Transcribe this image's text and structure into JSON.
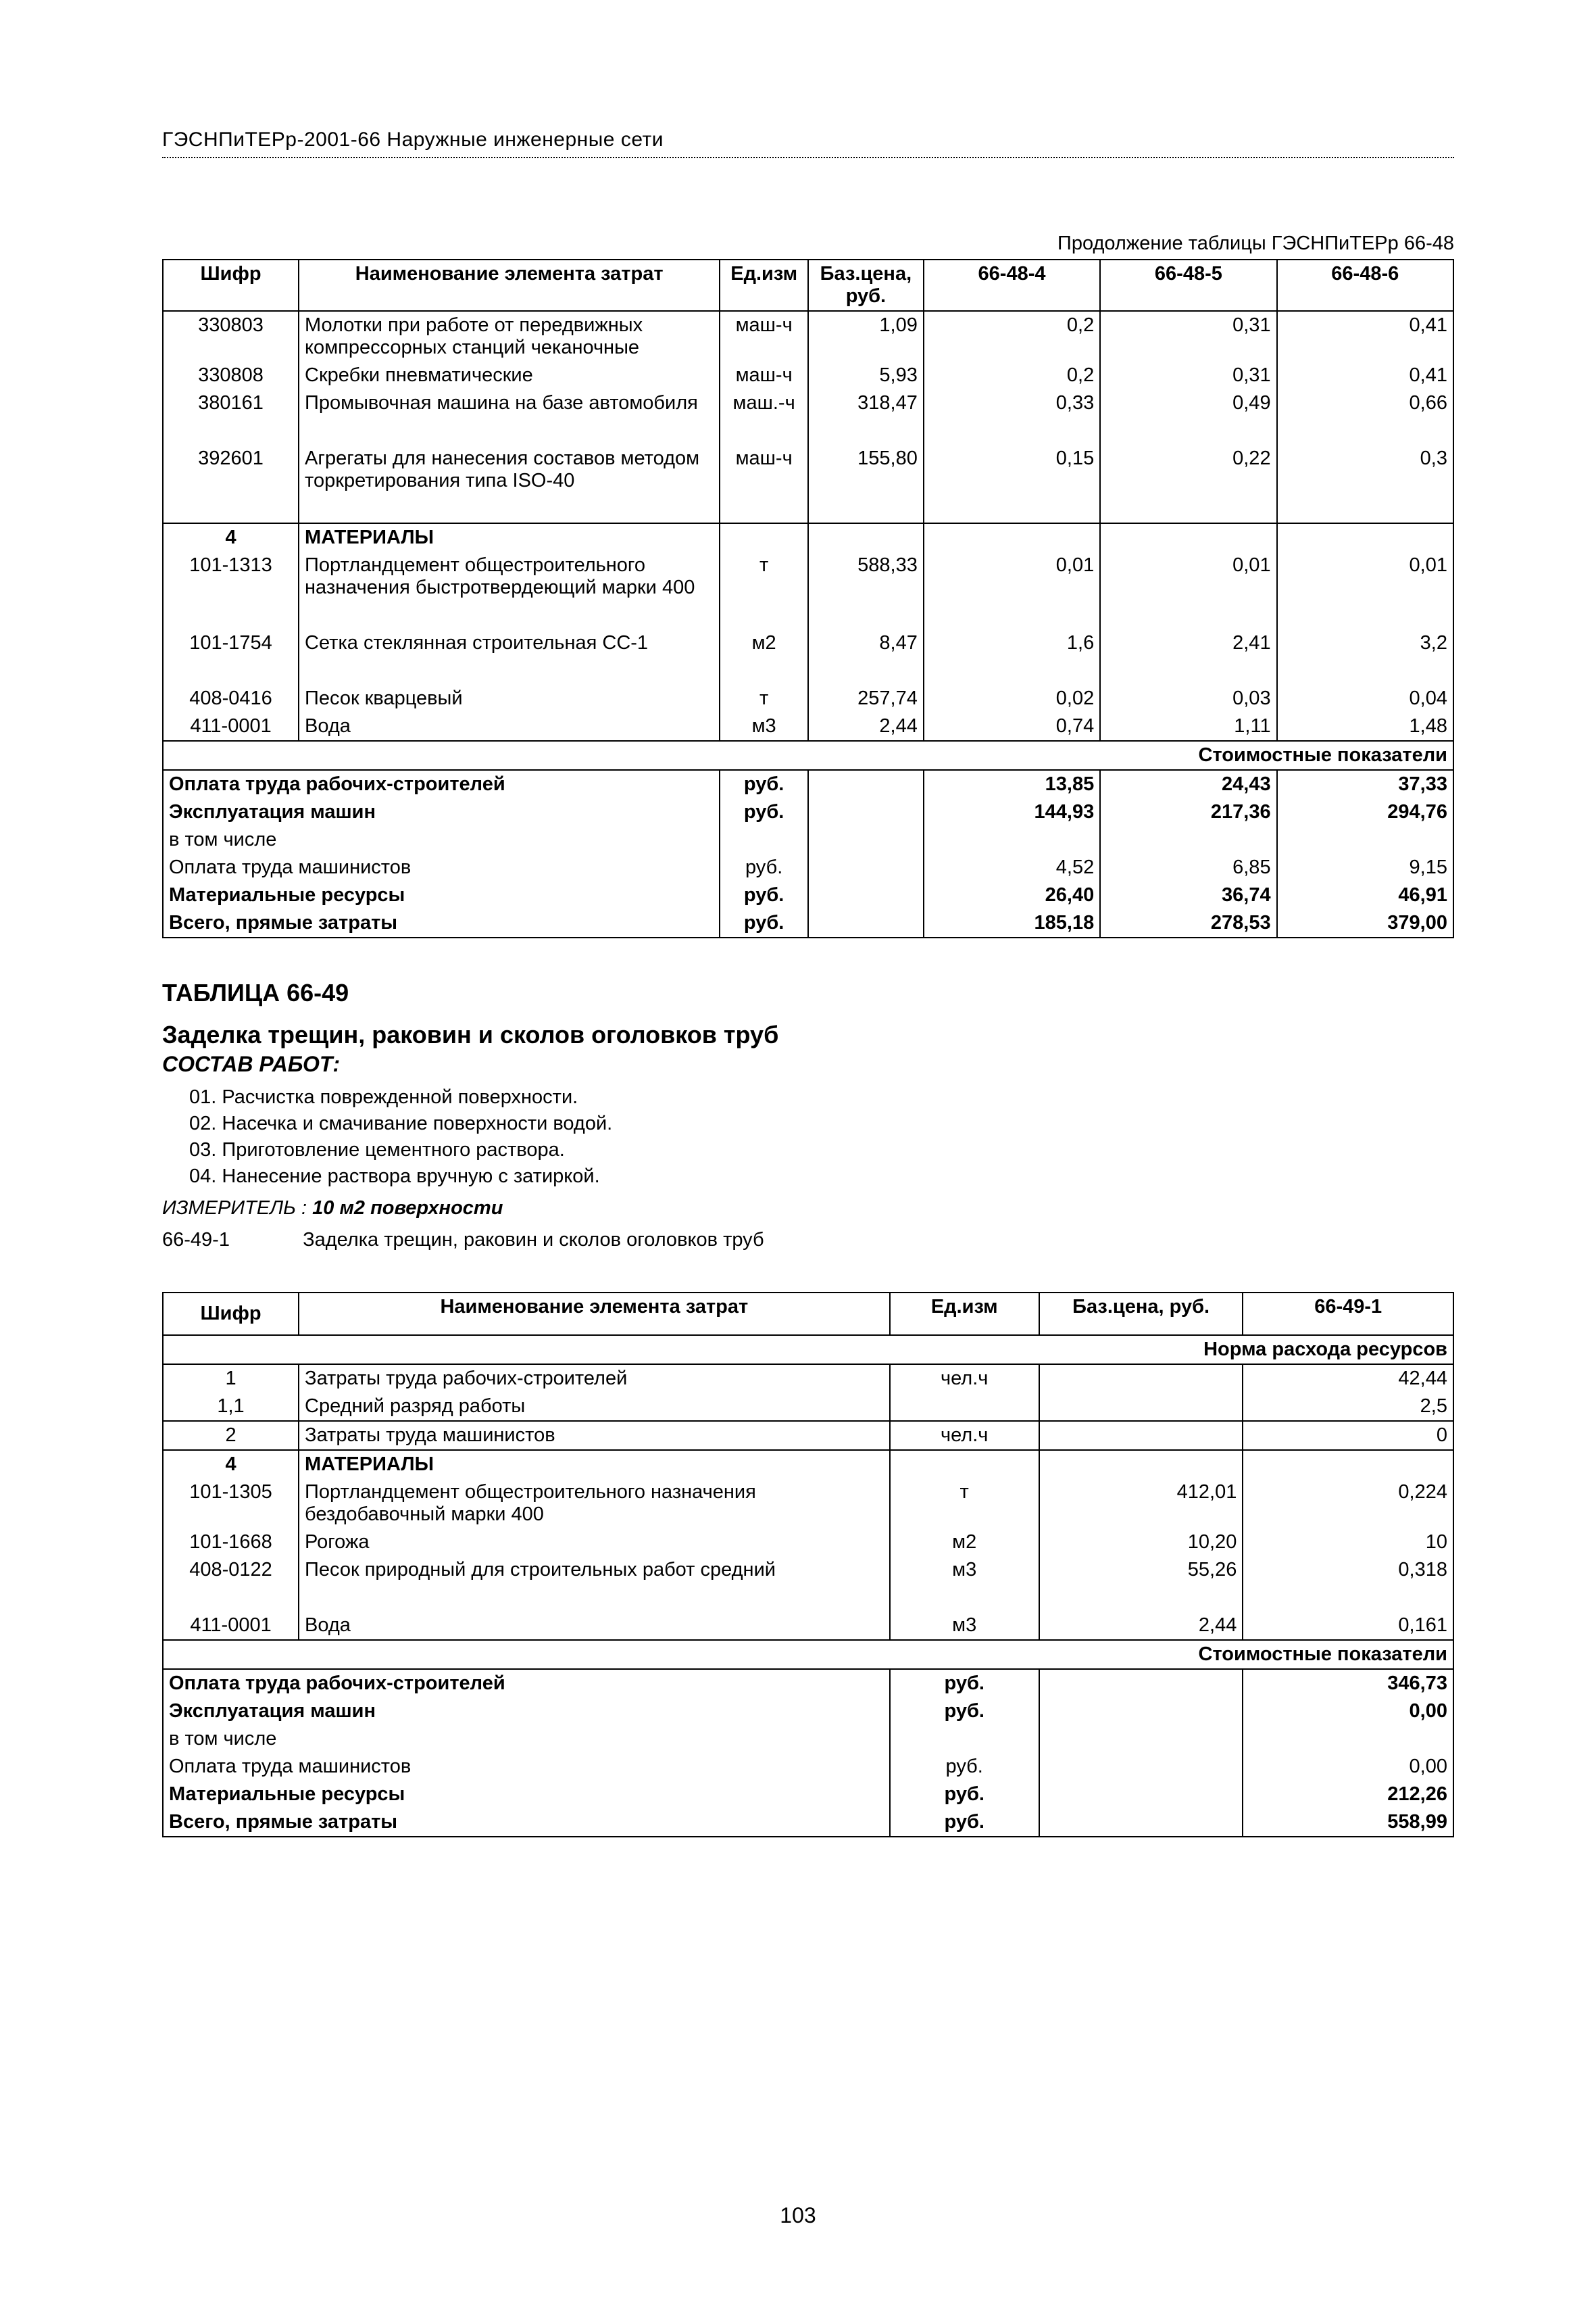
{
  "header": "ГЭСНПиТЕРр-2001-66 Наружные инженерные сети",
  "page_number": "103",
  "table48": {
    "cont_caption": "Продолжение таблицы ГЭСНПиТЕРр 66-48",
    "head": {
      "code": "Шифр",
      "name": "Наименование элемента затрат",
      "unit": "Ед.изм",
      "price": "Баз.цена, руб.",
      "v1": "66-48-4",
      "v2": "66-48-5",
      "v3": "66-48-6"
    },
    "rows": [
      {
        "code": "330803",
        "name": "Молотки при работе от передвижных компрессорных станций чеканочные",
        "unit": "маш-ч",
        "price": "1,09",
        "v1": "0,2",
        "v2": "0,31",
        "v3": "0,41"
      },
      {
        "code": "330808",
        "name": "Скребки пневматические",
        "unit": "маш-ч",
        "price": "5,93",
        "v1": "0,2",
        "v2": "0,31",
        "v3": "0,41"
      },
      {
        "code": "380161",
        "name": "Промывочная машина на базе автомобиля",
        "unit": "маш.-ч",
        "price": "318,47",
        "v1": "0,33",
        "v2": "0,49",
        "v3": "0,66",
        "gap_after": true
      },
      {
        "code": "392601",
        "name": "Агрегаты для нанесения составов методом торкретирования типа ISO-40",
        "unit": "маш-ч",
        "price": "155,80",
        "v1": "0,15",
        "v2": "0,22",
        "v3": "0,3"
      }
    ],
    "mat_header": {
      "code": "4",
      "name": "МАТЕРИАЛЫ"
    },
    "mat_rows": [
      {
        "code": "101-1313",
        "name": "Портландцемент общестроительного назначения быстротвердеющий марки 400",
        "unit": "т",
        "price": "588,33",
        "v1": "0,01",
        "v2": "0,01",
        "v3": "0,01",
        "gap_after": true
      },
      {
        "code": "101-1754",
        "name": "Сетка стеклянная строительная СС-1",
        "unit": "м2",
        "price": "8,47",
        "v1": "1,6",
        "v2": "2,41",
        "v3": "3,2",
        "gap_after": true
      },
      {
        "code": "408-0416",
        "name": "Песок кварцевый",
        "unit": "т",
        "price": "257,74",
        "v1": "0,02",
        "v2": "0,03",
        "v3": "0,04"
      },
      {
        "code": "411-0001",
        "name": "Вода",
        "unit": "м3",
        "price": "2,44",
        "v1": "0,74",
        "v2": "1,11",
        "v3": "1,48"
      }
    ],
    "cost_caption": "Стоимостные показатели",
    "summary": [
      {
        "label": "Оплата труда рабочих-строителей",
        "unit": "руб.",
        "v1": "13,85",
        "v2": "24,43",
        "v3": "37,33",
        "bold": true
      },
      {
        "label": "Эксплуатация машин",
        "unit": "руб.",
        "v1": "144,93",
        "v2": "217,36",
        "v3": "294,76",
        "bold": true
      },
      {
        "label": "в том числе",
        "unit": "",
        "v1": "",
        "v2": "",
        "v3": "",
        "bold": false
      },
      {
        "label": "Оплата труда машинистов",
        "unit": "руб.",
        "v1": "4,52",
        "v2": "6,85",
        "v3": "9,15",
        "bold": false
      },
      {
        "label": "Материальные ресурсы",
        "unit": "руб.",
        "v1": "26,40",
        "v2": "36,74",
        "v3": "46,91",
        "bold": true
      },
      {
        "label": "Всего, прямые затраты",
        "unit": "руб.",
        "v1": "185,18",
        "v2": "278,53",
        "v3": "379,00",
        "bold": true
      }
    ]
  },
  "section49": {
    "table_no": "ТАБЛИЦА 66-49",
    "title": "Заделка трещин, раковин и сколов оголовков труб",
    "sostav": "СОСТАВ РАБОТ:",
    "works": [
      "01. Расчистка поврежденной поверхности.",
      "02. Насечка и смачивание поверхности водой.",
      "03. Приготовление цементного раствора.",
      "04. Нанесение раствора вручную с затиркой."
    ],
    "izmer_label": "ИЗМЕРИТЕЛЬ :",
    "izmer_value": "10 м2 поверхности",
    "variant_code": "66-49-1",
    "variant_text": "Заделка трещин, раковин и сколов оголовков труб"
  },
  "table49": {
    "head": {
      "code": "Шифр",
      "name": "Наименование элемента затрат",
      "unit": "Ед.изм",
      "price": "Баз.цена, руб.",
      "v1": "66-49-1"
    },
    "norm_caption": "Норма расхода ресурсов",
    "rows1": [
      {
        "code": "1",
        "name": "Затраты труда рабочих-строителей",
        "unit": "чел.ч",
        "price": "",
        "v1": "42,44"
      },
      {
        "code": "1,1",
        "name": "Средний разряд работы",
        "unit": "",
        "price": "",
        "v1": "2,5"
      }
    ],
    "rows2": [
      {
        "code": "2",
        "name": "Затраты труда машинистов",
        "unit": "чел.ч",
        "price": "",
        "v1": "0"
      }
    ],
    "mat_header": {
      "code": "4",
      "name": "МАТЕРИАЛЫ"
    },
    "mat_rows": [
      {
        "code": "101-1305",
        "name": "Портландцемент общестроительного назначения бездобавочный марки 400",
        "unit": "т",
        "price": "412,01",
        "v1": "0,224"
      },
      {
        "code": "101-1668",
        "name": "Рогожа",
        "unit": "м2",
        "price": "10,20",
        "v1": "10"
      },
      {
        "code": "408-0122",
        "name": "Песок природный для строительных работ средний",
        "unit": "м3",
        "price": "55,26",
        "v1": "0,318",
        "gap_after": true
      },
      {
        "code": "411-0001",
        "name": "Вода",
        "unit": "м3",
        "price": "2,44",
        "v1": "0,161"
      }
    ],
    "cost_caption": "Стоимостные показатели",
    "summary": [
      {
        "label": "Оплата труда рабочих-строителей",
        "unit": "руб.",
        "v1": "346,73",
        "bold": true
      },
      {
        "label": "Эксплуатация машин",
        "unit": "руб.",
        "v1": "0,00",
        "bold": true
      },
      {
        "label": "в том числе",
        "unit": "",
        "v1": "",
        "bold": false
      },
      {
        "label": "Оплата труда машинистов",
        "unit": "руб.",
        "v1": "0,00",
        "bold": false
      },
      {
        "label": "Материальные ресурсы",
        "unit": "руб.",
        "v1": "212,26",
        "bold": true
      },
      {
        "label": "Всего, прямые затраты",
        "unit": "руб.",
        "v1": "558,99",
        "bold": true
      }
    ]
  }
}
